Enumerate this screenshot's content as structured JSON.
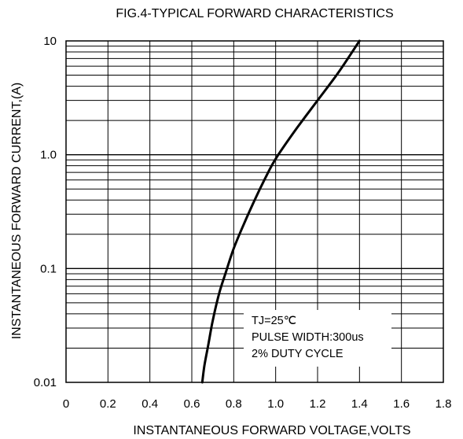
{
  "chart_data": {
    "type": "line",
    "title": "FIG.4-TYPICAL FORWARD CHARACTERISTICS",
    "xlabel": "INSTANTANEOUS FORWARD VOLTAGE,VOLTS",
    "ylabel": "INSTANTANEOUS FORWARD CURRENT,(A)",
    "xlim": [
      0,
      1.8
    ],
    "ylim": [
      0.01,
      10
    ],
    "yscale": "log",
    "grid": true,
    "x_ticks": [
      "0",
      "0.2",
      "0.4",
      "0.6",
      "0.8",
      "1.0",
      "1.2",
      "1.4",
      "1.6",
      "1.8"
    ],
    "y_ticks": [
      {
        "value": 0.01,
        "label": "0.01"
      },
      {
        "value": 0.1,
        "label": "0.1"
      },
      {
        "value": 1,
        "label": "1.0"
      },
      {
        "value": 10,
        "label": "10"
      }
    ],
    "series": [
      {
        "x": [
          0.65,
          0.66,
          0.68,
          0.7,
          0.73,
          0.76,
          0.8,
          0.85,
          0.9,
          0.95,
          1.0,
          1.1,
          1.2,
          1.3,
          1.4
        ],
        "y": [
          0.01,
          0.014,
          0.022,
          0.035,
          0.06,
          0.09,
          0.15,
          0.25,
          0.4,
          0.62,
          0.92,
          1.7,
          3.0,
          5.3,
          10
        ]
      }
    ],
    "annotations": [
      "TJ=25℃",
      "PULSE WIDTH:300us",
      "2% DUTY CYCLE"
    ]
  }
}
